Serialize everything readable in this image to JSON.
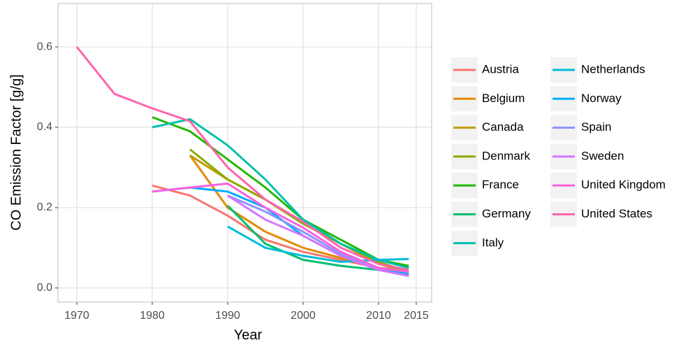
{
  "chart_data": {
    "type": "line",
    "x_label": "Year",
    "y_label": "CO  Emission Factor [g/g]",
    "x": [
      1970,
      1975,
      1980,
      1985,
      1990,
      1995,
      2000,
      2005,
      2010,
      2014
    ],
    "xlim": [
      1967.5,
      2017.04
    ],
    "ylim": [
      -0.035,
      0.708
    ],
    "xticks": [
      1970,
      1980,
      1990,
      2000,
      2010,
      2015
    ],
    "yticks": [
      {
        "value": 0,
        "label": "0.0"
      },
      0.2,
      0.4,
      0.6
    ],
    "grid": true,
    "legend_position": "right",
    "series": [
      {
        "name": "Austria",
        "color": "#F8766D",
        "values": [
          null,
          null,
          0.255,
          0.23,
          0.18,
          0.12,
          0.09,
          0.07,
          0.05,
          0.045
        ]
      },
      {
        "name": "Belgium",
        "color": "#E18A00",
        "values": [
          null,
          null,
          null,
          0.33,
          0.2,
          0.14,
          0.1,
          0.075,
          0.05,
          0.04
        ]
      },
      {
        "name": "Canada",
        "color": "#BE9C00",
        "values": [
          null,
          null,
          null,
          0.33,
          0.27,
          0.22,
          0.16,
          0.11,
          0.06,
          0.04
        ]
      },
      {
        "name": "Denmark",
        "color": "#8CAB00",
        "values": [
          null,
          null,
          null,
          0.345,
          0.27,
          0.22,
          0.16,
          0.11,
          0.065,
          0.04
        ]
      },
      {
        "name": "France",
        "color": "#24B700",
        "values": [
          null,
          null,
          0.425,
          0.39,
          0.32,
          0.25,
          0.17,
          0.12,
          0.07,
          0.055
        ]
      },
      {
        "name": "Germany",
        "color": "#00BE70",
        "values": [
          null,
          null,
          null,
          null,
          0.205,
          0.11,
          0.07,
          0.055,
          0.045,
          0.035
        ]
      },
      {
        "name": "Italy",
        "color": "#00C1AB",
        "values": [
          null,
          null,
          0.4,
          0.42,
          0.355,
          0.27,
          0.17,
          0.11,
          0.07,
          0.05
        ]
      },
      {
        "name": "Netherlands",
        "color": "#00BBDA",
        "values": [
          null,
          null,
          null,
          null,
          0.153,
          0.1,
          0.08,
          0.065,
          0.07,
          0.072
        ]
      },
      {
        "name": "Norway",
        "color": "#00ACFC",
        "values": [
          null,
          null,
          0.24,
          0.25,
          0.24,
          0.2,
          0.13,
          0.08,
          0.045,
          0.035
        ]
      },
      {
        "name": "Spain",
        "color": "#8B93FF",
        "values": [
          null,
          null,
          null,
          null,
          0.23,
          0.19,
          0.14,
          0.085,
          0.045,
          0.03
        ]
      },
      {
        "name": "Sweden",
        "color": "#D575FE",
        "values": [
          null,
          null,
          null,
          null,
          0.23,
          0.17,
          0.13,
          0.08,
          0.045,
          0.03
        ]
      },
      {
        "name": "United Kingdom",
        "color": "#F962DD",
        "values": [
          null,
          null,
          0.24,
          0.25,
          0.26,
          0.2,
          0.15,
          0.09,
          0.05,
          0.04
        ]
      },
      {
        "name": "United States",
        "color": "#FF65AC",
        "values": [
          0.6,
          0.483,
          0.447,
          0.415,
          0.3,
          0.22,
          0.165,
          0.1,
          0.06,
          0.045
        ]
      }
    ]
  }
}
